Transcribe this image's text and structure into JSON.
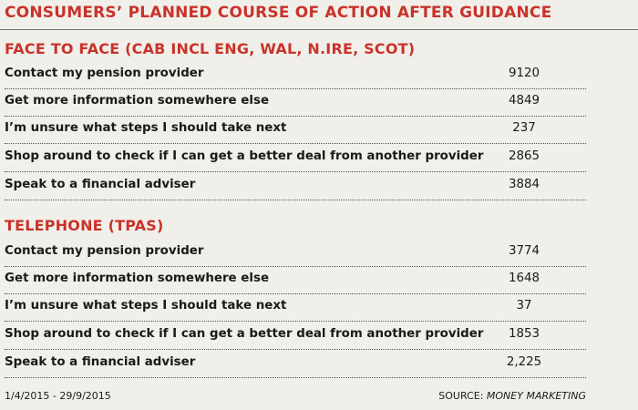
{
  "title": "CONSUMERS’ PLANNED COURSE OF ACTION AFTER GUIDANCE",
  "sections": [
    {
      "heading": "FACE TO FACE (CAB INCL ENG, WAL, N.IRE, SCOT)",
      "rows": [
        {
          "label": "Contact my pension provider",
          "value": "9120"
        },
        {
          "label": "Get more information somewhere else",
          "value": "4849"
        },
        {
          "label": "I’m unsure what steps I should take next",
          "value": "237"
        },
        {
          "label": "Shop around to check if I can get a better deal from another provider",
          "value": "2865"
        },
        {
          "label": "Speak to a financial adviser",
          "value": "3884"
        }
      ]
    },
    {
      "heading": "TELEPHONE (TPAS)",
      "rows": [
        {
          "label": "Contact my pension provider",
          "value": "3774"
        },
        {
          "label": "Get more information somewhere else",
          "value": "1648"
        },
        {
          "label": "I’m unsure what steps I should take next",
          "value": "37"
        },
        {
          "label": "Shop around to check if I can get a better deal from another provider",
          "value": "1853"
        },
        {
          "label": "Speak to a financial adviser",
          "value": "2,225"
        }
      ]
    }
  ],
  "footer": {
    "date_range": "1/4/2015 - 29/9/2015",
    "source_prefix": "SOURCE: ",
    "source_name": "MONEY MARKETING"
  }
}
